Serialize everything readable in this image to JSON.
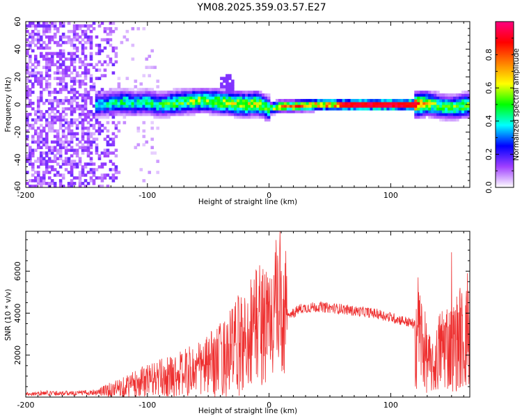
{
  "title": "YM08.2025.359.03.57.E27",
  "chart_data": [
    {
      "type": "heatmap",
      "title": "YM08.2025.359.03.57.E27",
      "xlabel": "Height of straight line (km)",
      "ylabel": "Frequency (Hz)",
      "xlim": [
        -200,
        165
      ],
      "ylim": [
        -60,
        60
      ],
      "xticks": [
        "-200",
        "-100",
        "0",
        "100"
      ],
      "yticks": [
        "-60",
        "-40",
        "-20",
        "0",
        "20",
        "40",
        "60"
      ],
      "colorbar": {
        "label": "Normalized spectral amplitude",
        "range": [
          0,
          1
        ],
        "ticks": [
          "0.0",
          "0.2",
          "0.4",
          "0.6",
          "0.8"
        ],
        "colors": [
          "#ffffff",
          "#a040ff",
          "#0000ff",
          "#00ffff",
          "#00ff00",
          "#ffff00",
          "#ff8000",
          "#ff0000",
          "#ff0080"
        ]
      },
      "ridge": {
        "x": [
          -142,
          -130,
          -120,
          -110,
          -100,
          -90,
          -80,
          -70,
          -60,
          -50,
          -40,
          -30,
          -20,
          -10,
          -5,
          0,
          5,
          10,
          20,
          40,
          60,
          80,
          100,
          120,
          130,
          140,
          150,
          165
        ],
        "freq": [
          0,
          1,
          2,
          1,
          2,
          0,
          1,
          2,
          3,
          3,
          2,
          1,
          0,
          1,
          -1,
          -3,
          -2,
          -1,
          -1,
          0,
          0,
          0,
          0,
          0,
          1,
          -1,
          -2,
          0
        ],
        "amplitude": [
          0.35,
          0.4,
          0.45,
          0.4,
          0.45,
          0.45,
          0.5,
          0.5,
          0.55,
          0.55,
          0.6,
          0.6,
          0.65,
          0.6,
          0.55,
          0.5,
          0.6,
          0.7,
          0.75,
          0.75,
          0.8,
          0.85,
          0.9,
          0.85,
          0.6,
          0.5,
          0.5,
          0.55
        ]
      },
      "noise_region_x": [
        -200,
        -125
      ]
    },
    {
      "type": "line",
      "xlabel": "Height of straight line (km)",
      "ylabel": "SNR (10 * v/v)",
      "xlim": [
        -200,
        165
      ],
      "ylim": [
        0,
        7900
      ],
      "xticks": [
        "-200",
        "-100",
        "0",
        "100"
      ],
      "yticks": [
        "2000",
        "4000",
        "6000"
      ],
      "series": [
        {
          "name": "SNR",
          "color": "#ee3030",
          "x": [
            -200,
            -180,
            -160,
            -140,
            -130,
            -120,
            -110,
            -100,
            -90,
            -80,
            -70,
            -60,
            -50,
            -40,
            -30,
            -20,
            -15,
            -10,
            -5,
            0,
            5,
            10,
            15,
            20,
            25,
            30,
            40,
            50,
            60,
            70,
            80,
            90,
            100,
            110,
            118,
            122,
            125,
            130,
            135,
            140,
            145,
            150,
            155,
            160,
            165
          ],
          "envelope": [
            150,
            200,
            180,
            250,
            350,
            500,
            650,
            800,
            900,
            1000,
            1150,
            1300,
            1500,
            1800,
            2200,
            2700,
            3200,
            3600,
            3500,
            3400,
            4200,
            3700,
            3800,
            4000,
            4200,
            4250,
            4300,
            4250,
            4200,
            4100,
            4050,
            3950,
            3800,
            3650,
            3500,
            3300,
            2800,
            1800,
            1300,
            2200,
            2600,
            2300,
            2700,
            2800,
            2900
          ],
          "spikes": [
            [
              -30,
              4200
            ],
            [
              -15,
              5600
            ],
            [
              -5,
              6100
            ],
            [
              5,
              6900
            ],
            [
              9,
              7900
            ],
            [
              12,
              5800
            ],
            [
              123,
              5000
            ],
            [
              150,
              6900
            ],
            [
              157,
              5200
            ],
            [
              163,
              5900
            ]
          ]
        }
      ]
    }
  ]
}
